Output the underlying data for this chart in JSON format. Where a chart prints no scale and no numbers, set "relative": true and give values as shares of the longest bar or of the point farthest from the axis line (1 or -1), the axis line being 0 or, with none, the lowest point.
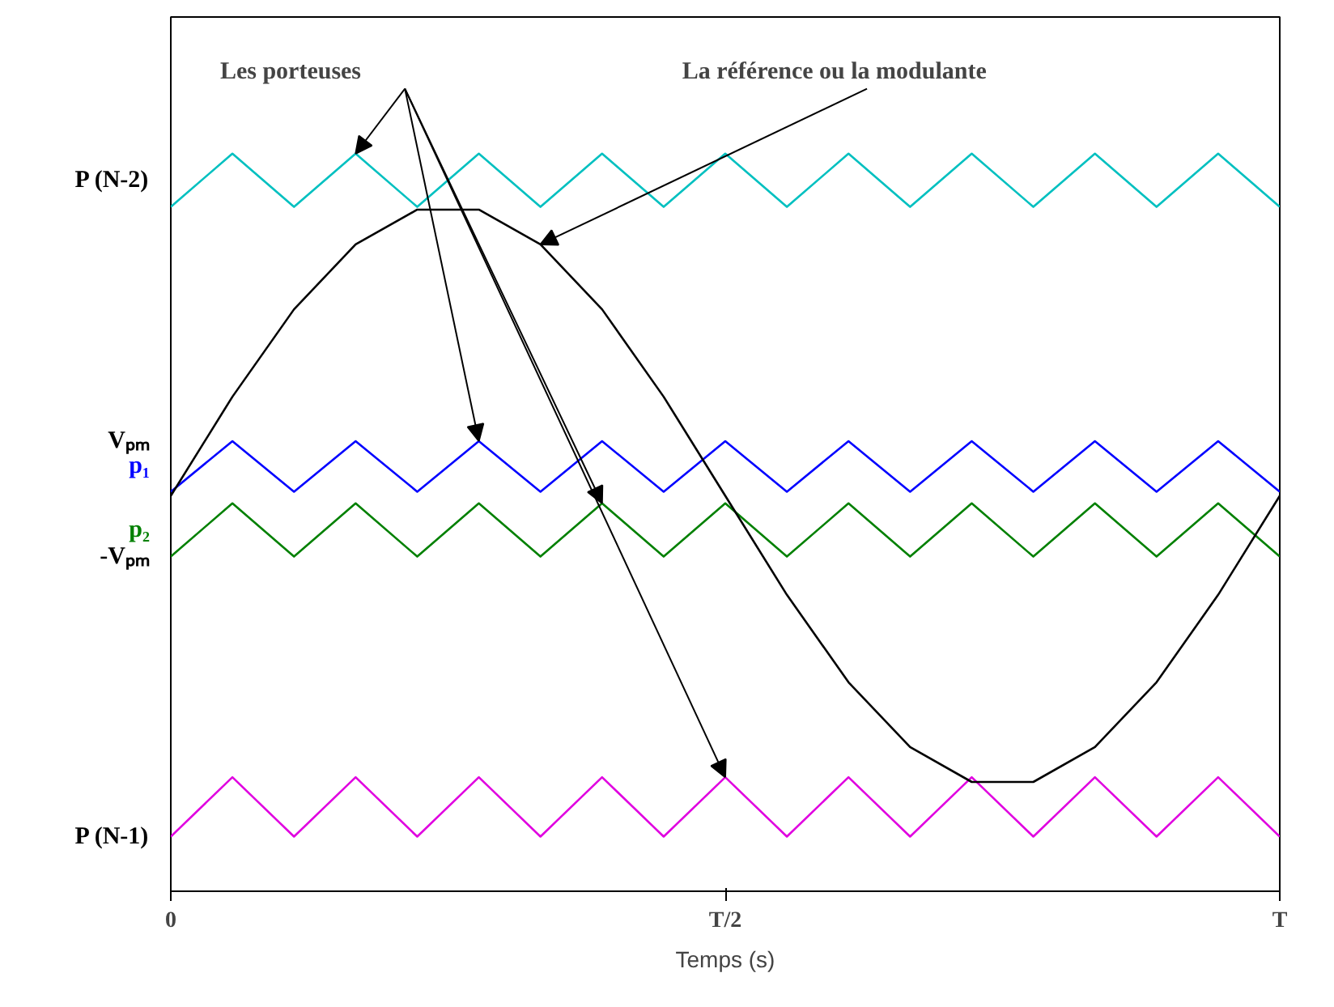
{
  "chart_data": {
    "type": "line",
    "relative": true,
    "xlabel": "Temps (s)",
    "categories": [
      "0",
      null,
      null,
      null,
      null,
      null,
      null,
      null,
      null,
      "T/2",
      null,
      null,
      null,
      null,
      null,
      null,
      null,
      null,
      "T"
    ],
    "series": [
      {
        "color": "#00c0c0",
        "values": [
          0.922,
          1.0,
          0.922,
          1.0,
          0.922,
          1.0,
          0.922,
          1.0,
          0.922,
          1.0,
          0.922,
          1.0,
          0.922,
          1.0,
          0.922,
          1.0,
          0.922,
          1.0,
          0.922
        ]
      },
      {
        "color": "#0000ff",
        "values": [
          0.505,
          0.579,
          0.505,
          0.579,
          0.505,
          0.579,
          0.505,
          0.579,
          0.505,
          0.579,
          0.505,
          0.579,
          0.505,
          0.579,
          0.505,
          0.579,
          0.505,
          0.579,
          0.505
        ]
      },
      {
        "color": "#008000",
        "values": [
          0.41,
          0.488,
          0.41,
          0.488,
          0.41,
          0.488,
          0.41,
          0.488,
          0.41,
          0.488,
          0.41,
          0.488,
          0.41,
          0.488,
          0.41,
          0.488,
          0.41,
          0.488,
          0.41
        ]
      },
      {
        "color": "#e000e0",
        "values": [
          0.0,
          0.087,
          0.0,
          0.087,
          0.0,
          0.087,
          0.0,
          0.087,
          0.0,
          0.087,
          0.0,
          0.087,
          0.0,
          0.087,
          0.0,
          0.087,
          0.0,
          0.087,
          0.0
        ]
      },
      {
        "color": "#000000",
        "values": [
          0.499,
          0.644,
          0.772,
          0.867,
          0.918,
          0.918,
          0.867,
          0.772,
          0.644,
          0.499,
          0.354,
          0.226,
          0.131,
          0.08,
          0.08,
          0.131,
          0.226,
          0.354,
          0.499
        ]
      }
    ],
    "annotations": [
      "Les porteuses",
      "La référence ou la modulante",
      "P (N-2)",
      "Vₚₘ",
      "p₁",
      "p₂",
      "-Vₚₘ",
      "P (N-1)"
    ],
    "grid": false,
    "marker": "none",
    "line_style": "solid"
  }
}
